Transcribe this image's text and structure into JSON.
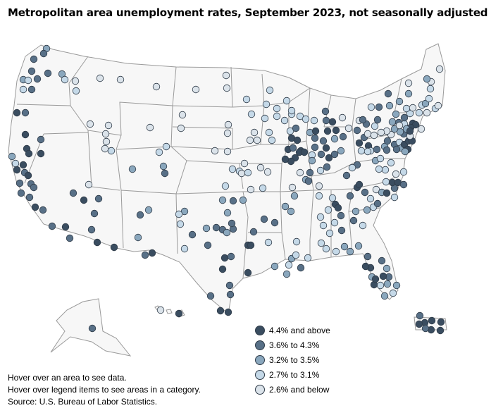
{
  "title": "Metropolitan area unemployment rates, September 2023, not seasonally adjusted",
  "legend": [
    {
      "label": "4.4% and above",
      "color": "#3a4d60"
    },
    {
      "label": "3.6% to 4.3%",
      "color": "#587087"
    },
    {
      "label": "3.2% to 3.5%",
      "color": "#8aa7bd"
    },
    {
      "label": "2.7% to 3.1%",
      "color": "#c5d9e8"
    },
    {
      "label": "2.6% and below",
      "color": "#dbe3ea"
    }
  ],
  "notes": {
    "hover_area": "Hover over an area to see data.",
    "hover_legend": "Hover over legend items to see areas in a category.",
    "source": "Source: U.S. Bureau of Labor Statistics."
  }
}
